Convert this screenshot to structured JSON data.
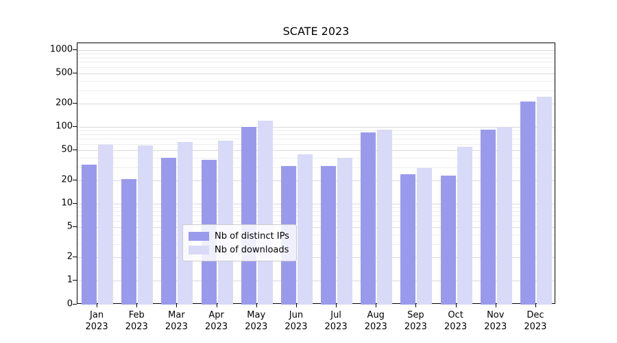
{
  "title": "SCATE 2023",
  "chart_data": {
    "type": "bar",
    "categories": [
      "Jan 2023",
      "Feb 2023",
      "Mar 2023",
      "Apr 2023",
      "May 2023",
      "Jun 2023",
      "Jul 2023",
      "Aug 2023",
      "Sep 2023",
      "Oct 2023",
      "Nov 2023",
      "Dec 2023"
    ],
    "series": [
      {
        "name": "Nb of distinct IPs",
        "color": "#9a9aec",
        "values": [
          32,
          21,
          40,
          37,
          100,
          31,
          31,
          85,
          24,
          23,
          92,
          215
        ]
      },
      {
        "name": "Nb of downloads",
        "color": "#d9d9f8",
        "values": [
          58,
          57,
          63,
          66,
          120,
          44,
          40,
          93,
          29,
          55,
          100,
          245
        ]
      }
    ],
    "title": "SCATE 2023",
    "xlabel": "",
    "ylabel": "",
    "yscale": "symlog",
    "yticks": [
      1000,
      500,
      200,
      100,
      50,
      20,
      10,
      5,
      2,
      1,
      0
    ],
    "ylim": [
      0,
      1300
    ],
    "grid": true,
    "legend_position": "lower center"
  },
  "legend": {
    "items": [
      {
        "label": "Nb of distinct IPs"
      },
      {
        "label": "Nb of downloads"
      }
    ]
  }
}
